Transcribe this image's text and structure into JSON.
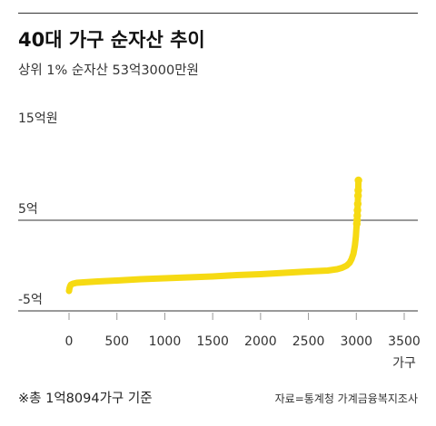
{
  "header": {
    "title": "40대 가구 순자산 추이",
    "subtitle": "상위 1% 순자산 53억3000만원"
  },
  "footer": {
    "note": "※총 1억8094가구 기준",
    "source": "자료=통계청 가계금융복지조사"
  },
  "colors": {
    "series": "#F6DA13",
    "axis": "#333333",
    "tick": "#999999"
  },
  "chart_data": {
    "type": "scatter",
    "title": "40대 가구 순자산 추이",
    "subtitle": "상위 1% 순자산 53억3000만원",
    "xlabel": "가구",
    "ylabel": "",
    "xlim": [
      0,
      3500
    ],
    "ylim": [
      -5,
      15
    ],
    "x_ticks": [
      0,
      500,
      1000,
      1500,
      2000,
      2500,
      3000,
      3500
    ],
    "x_tick_labels": [
      "0",
      "500",
      "1000",
      "1500",
      "2000",
      "2500",
      "3000",
      "3500"
    ],
    "y_ticks": [
      15,
      5,
      -5
    ],
    "y_tick_labels": [
      "15억원",
      "5억",
      "-5억"
    ],
    "reference_lines": [
      5,
      -5
    ],
    "grid": false,
    "series": [
      {
        "name": "",
        "color": "#F6DA13",
        "points": [
          [
            0,
            -2.8
          ],
          [
            5,
            -2.5
          ],
          [
            10,
            -2.3
          ],
          [
            20,
            -2.1
          ],
          [
            40,
            -2.0
          ],
          [
            80,
            -1.9
          ],
          [
            150,
            -1.85
          ],
          [
            300,
            -1.75
          ],
          [
            500,
            -1.65
          ],
          [
            750,
            -1.5
          ],
          [
            1000,
            -1.4
          ],
          [
            1250,
            -1.3
          ],
          [
            1500,
            -1.2
          ],
          [
            1750,
            -1.05
          ],
          [
            2000,
            -0.95
          ],
          [
            2250,
            -0.8
          ],
          [
            2500,
            -0.65
          ],
          [
            2600,
            -0.6
          ],
          [
            2700,
            -0.55
          ],
          [
            2800,
            -0.4
          ],
          [
            2850,
            -0.25
          ],
          [
            2900,
            0.0
          ],
          [
            2930,
            0.3
          ],
          [
            2950,
            0.7
          ],
          [
            2970,
            1.3
          ],
          [
            2985,
            2.2
          ],
          [
            2995,
            3.2
          ],
          [
            3000,
            4.0
          ],
          [
            3005,
            4.6
          ],
          [
            3008,
            5.0
          ],
          [
            3010,
            5.5
          ],
          [
            3012,
            6.1
          ],
          [
            3015,
            6.8
          ],
          [
            3018,
            7.7
          ],
          [
            3020,
            8.3
          ],
          [
            3022,
            9.4
          ]
        ]
      }
    ]
  }
}
